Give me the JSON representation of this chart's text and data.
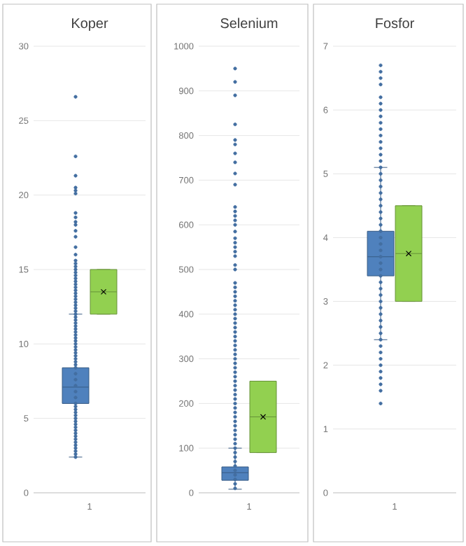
{
  "chart_data": [
    {
      "type": "box",
      "title": "Koper",
      "categories": [
        "1"
      ],
      "ylim": [
        0,
        30
      ],
      "yticks": [
        0,
        5,
        10,
        15,
        20,
        25,
        30
      ],
      "grid": "y",
      "series": [
        {
          "color": "#4f81bd",
          "boxes": [
            {
              "low": 2.4,
              "q1": 6.0,
              "median": 7.1,
              "q3": 8.4,
              "high": 12.0,
              "outliers": [
                2.4,
                2.6,
                2.8,
                3.0,
                3.2,
                3.4,
                3.6,
                3.8,
                4.0,
                4.2,
                4.4,
                4.6,
                4.8,
                5.0,
                5.2,
                5.4,
                5.6,
                5.8,
                6.0,
                6.4,
                6.8,
                7.2,
                7.6,
                8.0,
                8.4,
                8.6,
                8.8,
                9.0,
                9.2,
                9.4,
                9.6,
                9.8,
                10.0,
                10.2,
                10.4,
                10.6,
                10.8,
                11.0,
                11.2,
                11.4,
                11.6,
                11.8,
                12.0,
                12.2,
                12.4,
                12.6,
                12.8,
                13.0,
                13.2,
                13.4,
                13.6,
                13.8,
                14.0,
                14.2,
                14.4,
                14.6,
                14.8,
                15.0,
                15.2,
                15.4,
                15.6,
                16.0,
                16.5,
                17.2,
                17.6,
                18.0,
                18.2,
                18.5,
                18.8,
                20.1,
                20.3,
                20.5,
                21.3,
                22.6,
                26.6
              ]
            }
          ]
        },
        {
          "color": "#92d050",
          "boxes": [
            {
              "low": 12.0,
              "q1": 12.0,
              "median": 13.5,
              "q3": 15.0,
              "high": 15.0,
              "mean": 13.5
            }
          ]
        }
      ]
    },
    {
      "type": "box",
      "title": "Selenium",
      "categories": [
        "1"
      ],
      "ylim": [
        0,
        1000
      ],
      "yticks": [
        0,
        100,
        200,
        300,
        400,
        500,
        600,
        700,
        800,
        900,
        1000
      ],
      "grid": "y",
      "series": [
        {
          "color": "#4f81bd",
          "boxes": [
            {
              "low": 8,
              "q1": 28,
              "median": 45,
              "q3": 58,
              "high": 100,
              "outliers": [
                10,
                20,
                30,
                40,
                50,
                60,
                70,
                80,
                90,
                100,
                110,
                120,
                130,
                140,
                150,
                160,
                170,
                180,
                190,
                200,
                210,
                220,
                230,
                240,
                250,
                260,
                270,
                280,
                290,
                300,
                310,
                320,
                330,
                340,
                350,
                360,
                370,
                380,
                390,
                400,
                410,
                420,
                430,
                440,
                450,
                460,
                470,
                500,
                510,
                530,
                540,
                550,
                560,
                570,
                585,
                600,
                610,
                620,
                630,
                640,
                690,
                715,
                740,
                760,
                780,
                790,
                825,
                890,
                920,
                950
              ]
            }
          ]
        },
        {
          "color": "#92d050",
          "boxes": [
            {
              "low": 90,
              "q1": 90,
              "median": 170,
              "q3": 250,
              "high": 250,
              "mean": 170
            }
          ]
        }
      ]
    },
    {
      "type": "box",
      "title": "Fosfor",
      "categories": [
        "1"
      ],
      "ylim": [
        0,
        7
      ],
      "yticks": [
        0,
        1,
        2,
        3,
        4,
        5,
        6,
        7
      ],
      "grid": "y",
      "series": [
        {
          "color": "#4f81bd",
          "boxes": [
            {
              "low": 2.4,
              "q1": 3.4,
              "median": 3.7,
              "q3": 4.1,
              "high": 5.1,
              "outliers": [
                1.4,
                1.6,
                1.7,
                1.8,
                1.9,
                2.0,
                2.1,
                2.2,
                2.3,
                2.4,
                2.5,
                2.6,
                2.7,
                2.8,
                2.9,
                3.0,
                3.1,
                3.2,
                3.3,
                3.4,
                3.5,
                3.6,
                3.7,
                3.8,
                3.9,
                4.0,
                4.1,
                4.2,
                4.3,
                4.4,
                4.5,
                4.6,
                4.7,
                4.8,
                4.9,
                5.0,
                5.1,
                5.2,
                5.3,
                5.4,
                5.5,
                5.6,
                5.7,
                5.8,
                5.9,
                6.0,
                6.1,
                6.2,
                6.4,
                6.5,
                6.6,
                6.7
              ]
            }
          ]
        },
        {
          "color": "#92d050",
          "boxes": [
            {
              "low": 3.0,
              "q1": 3.0,
              "median": 3.75,
              "q3": 4.5,
              "high": 4.5,
              "mean": 3.75
            }
          ]
        }
      ]
    }
  ]
}
